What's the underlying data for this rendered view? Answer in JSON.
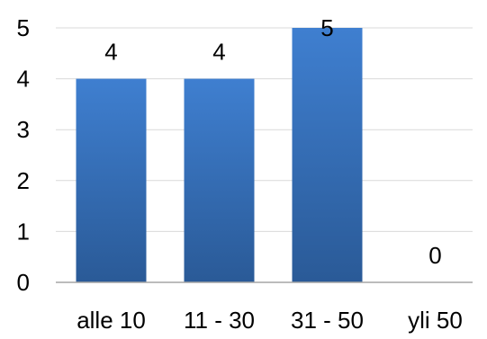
{
  "chart_data": {
    "type": "bar",
    "title": "",
    "xlabel": "",
    "ylabel": "",
    "categories": [
      "alle 10",
      "11 - 30",
      "31 - 50",
      "yli 50"
    ],
    "values": [
      4,
      4,
      5,
      0
    ],
    "data_labels": [
      "4",
      "4",
      "5",
      "0"
    ],
    "y_ticks": [
      "0",
      "1",
      "2",
      "3",
      "4",
      "5"
    ],
    "ylim": [
      0,
      5
    ],
    "grid": true,
    "legend": "none",
    "colors": {
      "bar_top": "#3f7fd0",
      "bar_bottom": "#2a5a97",
      "grid": "#d9d9d9",
      "axis": "#a6a6a6"
    }
  }
}
